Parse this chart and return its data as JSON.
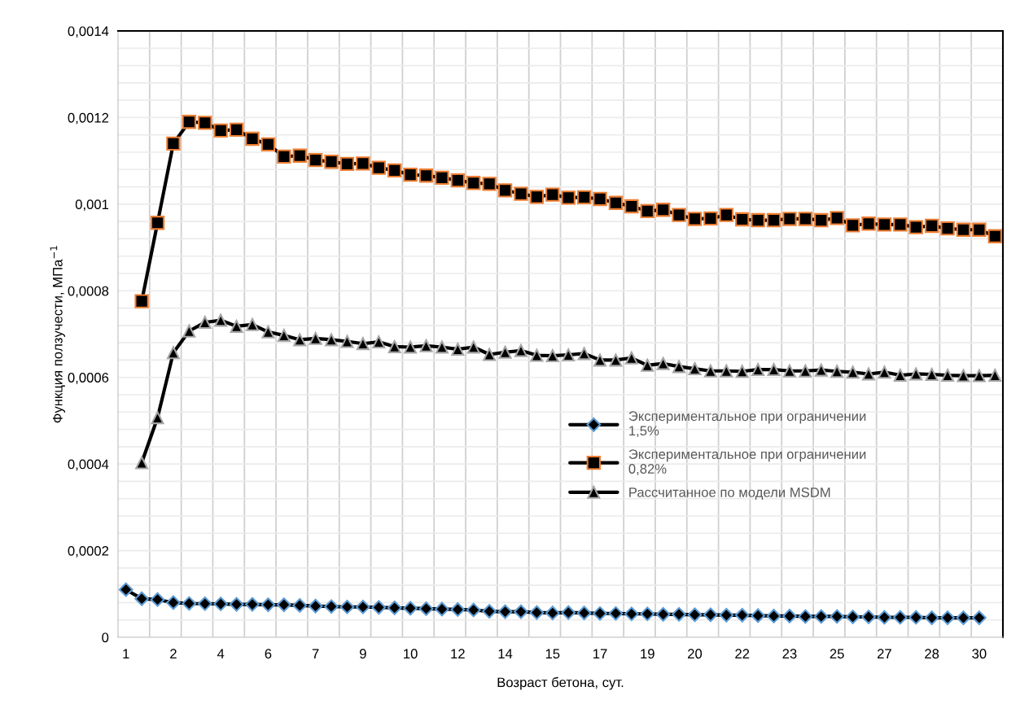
{
  "chart_data": {
    "type": "line",
    "xlabel": "Возраст бетона, сут.",
    "ylabel": "Функция ползучести, МПа$^{−1}$",
    "categories": [
      "1",
      null,
      null,
      "2",
      null,
      null,
      "4",
      null,
      null,
      "6",
      null,
      null,
      "7",
      null,
      null,
      "9",
      null,
      null,
      "10",
      null,
      null,
      "12",
      null,
      null,
      "14",
      null,
      null,
      "15",
      null,
      null,
      "17",
      null,
      null,
      "19",
      null,
      null,
      "20",
      null,
      null,
      "22",
      null,
      null,
      "23",
      null,
      null,
      "25",
      null,
      null,
      "27",
      null,
      null,
      "28",
      null,
      null,
      "30",
      null
    ],
    "ylim": [
      0,
      0.0014
    ],
    "yticks": [
      0,
      {
        "value": 4e-05,
        "label": null
      },
      {
        "value": 8e-05,
        "label": null
      },
      {
        "value": 0.00012,
        "label": null
      },
      {
        "value": 0.00016,
        "label": null
      },
      {
        "value": 0.0002,
        "label": "0,0002"
      },
      {
        "value": 0.00024,
        "label": null
      },
      {
        "value": 0.00028,
        "label": null
      },
      {
        "value": 0.00032,
        "label": null
      },
      {
        "value": 0.00036,
        "label": null
      },
      {
        "value": 0.0004,
        "label": "0,0004"
      },
      {
        "value": 0.00044,
        "label": null
      },
      {
        "value": 0.00048,
        "label": null
      },
      {
        "value": 0.00052,
        "label": null
      },
      {
        "value": 0.00056,
        "label": null
      },
      {
        "value": 0.0006,
        "label": "0,0006"
      },
      {
        "value": 0.00064,
        "label": null
      },
      {
        "value": 0.00068,
        "label": null
      },
      {
        "value": 0.00072,
        "label": null
      },
      {
        "value": 0.00076,
        "label": null
      },
      {
        "value": 0.0008,
        "label": "0,0008"
      },
      {
        "value": 0.00084,
        "label": null
      },
      {
        "value": 0.00088,
        "label": null
      },
      {
        "value": 0.00092,
        "label": null
      },
      {
        "value": 0.00096,
        "label": null
      },
      {
        "value": 0.001,
        "label": "0,001"
      },
      {
        "value": 0.00104,
        "label": null
      },
      {
        "value": 0.00108,
        "label": null
      },
      {
        "value": 0.00112,
        "label": null
      },
      {
        "value": 0.00116,
        "label": null
      },
      {
        "value": 0.0012,
        "label": "0,0012"
      },
      {
        "value": 0.00124,
        "label": null
      },
      {
        "value": 0.00128,
        "label": null
      },
      {
        "value": 0.00132,
        "label": null
      },
      {
        "value": 0.00136,
        "label": null
      },
      {
        "value": 0.0014,
        "label": "0,0014"
      }
    ],
    "grid": true,
    "legend": "right",
    "line_style": "solid",
    "series": [
      {
        "name": "Экспериментальное при ограничении\n1,5%",
        "color": "#000000",
        "marker": "diamond",
        "values": [
          0.00011,
          8.9e-05,
          8.7e-05,
          8e-05,
          7.8e-05,
          7.75e-05,
          7.7e-05,
          7.6e-05,
          7.6e-05,
          7.5e-05,
          7.5e-05,
          7.35e-05,
          7.2e-05,
          7.1e-05,
          7e-05,
          7e-05,
          6.9e-05,
          6.8e-05,
          6.7e-05,
          6.6e-05,
          6.5e-05,
          6.4e-05,
          6.3e-05,
          6e-05,
          5.9e-05,
          5.9e-05,
          5.7e-05,
          5.6e-05,
          5.7e-05,
          5.6e-05,
          5.5e-05,
          5.5e-05,
          5.4e-05,
          5.4e-05,
          5.3e-05,
          5.3e-05,
          5.2e-05,
          5.2e-05,
          5.1e-05,
          5.1e-05,
          5e-05,
          4.9e-05,
          4.9e-05,
          4.8e-05,
          4.8e-05,
          4.8e-05,
          4.7e-05,
          4.7e-05,
          4.6e-05,
          4.6e-05,
          4.6e-05,
          4.5e-05,
          4.5e-05,
          4.5e-05,
          4.5e-05,
          null
        ]
      },
      {
        "name": "Экспериментальное при ограничении\n0,82%",
        "color": "#000000",
        "marker": "square",
        "values": [
          null,
          0.000776,
          0.000957,
          0.00114,
          0.00119,
          0.001188,
          0.00117,
          0.001172,
          0.001151,
          0.001138,
          0.00111,
          0.001112,
          0.001102,
          0.001098,
          0.001093,
          0.001094,
          0.001084,
          0.001078,
          0.001068,
          0.001066,
          0.001061,
          0.001055,
          0.001049,
          0.001047,
          0.001032,
          0.001024,
          0.001017,
          0.001022,
          0.001015,
          0.001016,
          0.001012,
          0.001003,
          0.000995,
          0.000984,
          0.000987,
          0.000975,
          0.000966,
          0.000967,
          0.000975,
          0.000965,
          0.000963,
          0.000963,
          0.000966,
          0.000966,
          0.000963,
          0.000968,
          0.000951,
          0.000955,
          0.000953,
          0.000953,
          0.000947,
          0.00095,
          0.000944,
          0.000941,
          0.000941,
          0.000926
        ]
      },
      {
        "name": "Рассчитанное по модели MSDM",
        "color": "#000000",
        "marker": "triangle",
        "values": [
          null,
          0.000403,
          0.000507,
          0.000657,
          0.000707,
          0.000727,
          0.000732,
          0.000718,
          0.000722,
          0.000705,
          0.000697,
          0.000687,
          0.00069,
          0.000687,
          0.000683,
          0.000678,
          0.000682,
          0.000671,
          0.00067,
          0.000673,
          0.00067,
          0.000665,
          0.00067,
          0.000653,
          0.000658,
          0.000662,
          0.000651,
          0.00065,
          0.000652,
          0.000655,
          0.00064,
          0.00064,
          0.000645,
          0.000628,
          0.000632,
          0.000625,
          0.00062,
          0.000615,
          0.000615,
          0.000614,
          0.000618,
          0.000618,
          0.000615,
          0.000615,
          0.000617,
          0.000614,
          0.000612,
          0.000608,
          0.000612,
          0.000605,
          0.000608,
          0.000607,
          0.000605,
          0.000604,
          0.000604,
          0.000605
        ]
      }
    ]
  }
}
